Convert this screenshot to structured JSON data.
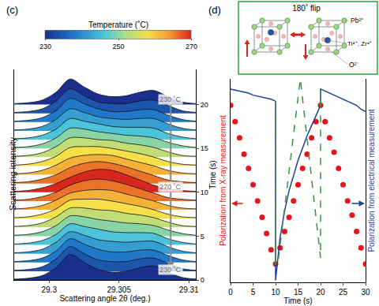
{
  "chart_data": [
    {
      "type": "ridgeline",
      "panel_label": "(c)",
      "xlabel": "Scattering angle 2θ (deg.)",
      "ylabel": "Time (s)",
      "intensity_label": "Scattering intensity",
      "x": [
        29.2975,
        29.2985,
        29.2995,
        29.3005,
        29.3015,
        29.3025,
        29.3035,
        29.3045,
        29.3055,
        29.3065,
        29.3075,
        29.3085,
        29.3095,
        29.3105
      ],
      "xlim": [
        29.2975,
        29.3105
      ],
      "xticks": [
        29.3,
        29.305,
        29.31
      ],
      "ylim": [
        0,
        24
      ],
      "yticks": [
        0,
        5,
        10,
        15,
        20
      ],
      "colorbar": {
        "title": "Temperature (˚C)",
        "range": [
          230,
          270
        ],
        "ticks": [
          230,
          250,
          270
        ]
      },
      "series": [
        {
          "time": 0,
          "temperature": 230,
          "values": [
            0.1,
            0.2,
            0.5,
            1.4,
            2.9,
            2.0,
            1.2,
            0.9,
            1.0,
            1.4,
            1.6,
            0.9,
            0.3,
            0.1
          ]
        },
        {
          "time": 1,
          "temperature": 234,
          "values": [
            0.1,
            0.2,
            0.5,
            1.4,
            2.8,
            2.0,
            1.3,
            1.1,
            1.1,
            1.4,
            1.5,
            0.9,
            0.3,
            0.1
          ]
        },
        {
          "time": 2,
          "temperature": 238,
          "values": [
            0.1,
            0.2,
            0.5,
            1.3,
            2.7,
            2.1,
            1.5,
            1.2,
            1.2,
            1.4,
            1.4,
            0.8,
            0.3,
            0.1
          ]
        },
        {
          "time": 3,
          "temperature": 242,
          "values": [
            0.1,
            0.2,
            0.5,
            1.3,
            2.5,
            2.1,
            1.6,
            1.4,
            1.3,
            1.4,
            1.4,
            0.8,
            0.3,
            0.1
          ]
        },
        {
          "time": 4,
          "temperature": 246,
          "values": [
            0.1,
            0.2,
            0.5,
            1.2,
            2.4,
            2.1,
            1.8,
            1.5,
            1.4,
            1.4,
            1.3,
            0.7,
            0.3,
            0.1
          ]
        },
        {
          "time": 5,
          "temperature": 250,
          "values": [
            0.1,
            0.2,
            0.5,
            1.2,
            2.3,
            2.2,
            1.9,
            1.7,
            1.5,
            1.4,
            1.2,
            0.7,
            0.3,
            0.1
          ]
        },
        {
          "time": 6,
          "temperature": 254,
          "values": [
            0.1,
            0.2,
            0.5,
            1.2,
            2.2,
            2.2,
            2.0,
            1.9,
            1.6,
            1.4,
            1.1,
            0.6,
            0.2,
            0.1
          ]
        },
        {
          "time": 7,
          "temperature": 258,
          "values": [
            0.1,
            0.2,
            0.5,
            1.1,
            2.1,
            2.2,
            2.2,
            2.0,
            1.7,
            1.4,
            1.0,
            0.5,
            0.2,
            0.1
          ]
        },
        {
          "time": 8,
          "temperature": 262,
          "values": [
            0.1,
            0.2,
            0.5,
            1.1,
            1.9,
            2.2,
            2.3,
            2.2,
            1.8,
            1.4,
            1.0,
            0.5,
            0.2,
            0.1
          ]
        },
        {
          "time": 9,
          "temperature": 266,
          "values": [
            0.1,
            0.2,
            0.5,
            1.0,
            1.8,
            2.3,
            2.5,
            2.3,
            1.9,
            1.4,
            0.9,
            0.4,
            0.2,
            0.1
          ]
        },
        {
          "time": 10,
          "temperature": 270,
          "values": [
            0.1,
            0.2,
            0.5,
            1.0,
            1.7,
            2.3,
            2.6,
            2.5,
            2.0,
            1.4,
            0.8,
            0.4,
            0.2,
            0.1
          ]
        },
        {
          "time": 11,
          "temperature": 266,
          "values": [
            0.1,
            0.2,
            0.5,
            1.0,
            1.8,
            2.3,
            2.5,
            2.3,
            1.9,
            1.4,
            0.9,
            0.4,
            0.2,
            0.1
          ]
        },
        {
          "time": 12,
          "temperature": 262,
          "values": [
            0.1,
            0.2,
            0.5,
            1.1,
            1.9,
            2.2,
            2.3,
            2.2,
            1.8,
            1.4,
            1.0,
            0.5,
            0.2,
            0.1
          ]
        },
        {
          "time": 13,
          "temperature": 258,
          "values": [
            0.1,
            0.2,
            0.5,
            1.1,
            2.1,
            2.2,
            2.2,
            2.0,
            1.7,
            1.4,
            1.0,
            0.5,
            0.2,
            0.1
          ]
        },
        {
          "time": 14,
          "temperature": 254,
          "values": [
            0.1,
            0.2,
            0.5,
            1.2,
            2.2,
            2.2,
            2.0,
            1.9,
            1.6,
            1.4,
            1.1,
            0.6,
            0.2,
            0.1
          ]
        },
        {
          "time": 15,
          "temperature": 250,
          "values": [
            0.1,
            0.2,
            0.5,
            1.2,
            2.3,
            2.2,
            1.9,
            1.7,
            1.5,
            1.4,
            1.2,
            0.7,
            0.3,
            0.1
          ]
        },
        {
          "time": 16,
          "temperature": 246,
          "values": [
            0.1,
            0.2,
            0.5,
            1.2,
            2.4,
            2.1,
            1.8,
            1.5,
            1.4,
            1.4,
            1.3,
            0.7,
            0.3,
            0.1
          ]
        },
        {
          "time": 17,
          "temperature": 242,
          "values": [
            0.1,
            0.2,
            0.5,
            1.3,
            2.5,
            2.1,
            1.6,
            1.4,
            1.3,
            1.4,
            1.4,
            0.8,
            0.3,
            0.1
          ]
        },
        {
          "time": 18,
          "temperature": 238,
          "values": [
            0.1,
            0.2,
            0.5,
            1.3,
            2.7,
            2.1,
            1.5,
            1.2,
            1.2,
            1.4,
            1.4,
            0.8,
            0.3,
            0.1
          ]
        },
        {
          "time": 19,
          "temperature": 234,
          "values": [
            0.1,
            0.2,
            0.5,
            1.4,
            2.8,
            2.0,
            1.3,
            1.1,
            1.1,
            1.4,
            1.5,
            0.9,
            0.3,
            0.1
          ]
        },
        {
          "time": 20,
          "temperature": 230,
          "values": [
            0.1,
            0.2,
            0.5,
            1.4,
            2.9,
            2.0,
            1.2,
            0.9,
            1.0,
            1.4,
            1.6,
            0.9,
            0.3,
            0.1
          ]
        }
      ],
      "annotations": [
        {
          "text": "230 ˚C",
          "x": 29.3087,
          "y": 20.6
        },
        {
          "text": "270 ˚C",
          "x": 29.3087,
          "y": 10.6
        },
        {
          "text": "230 ˚C",
          "x": 29.3087,
          "y": 1.2
        }
      ]
    },
    {
      "type": "scatter",
      "panel_label": "(d)",
      "xlabel": "Time (s)",
      "ylabel": "Polarization from X-ray measurement",
      "y2label": "Polarization from electrical measurement",
      "xlim": [
        0,
        30
      ],
      "xticks": [
        0,
        5,
        10,
        15,
        20,
        25,
        30
      ],
      "ylim": [
        0,
        100
      ],
      "y2lim": [
        0,
        100
      ],
      "tick_labels": "x",
      "series": [
        {
          "type": "scatter",
          "marker": "circle",
          "color": "#e8141c",
          "x": [
            0,
            1,
            2,
            3,
            4,
            5,
            6,
            7,
            8,
            9,
            10,
            11,
            12,
            13,
            14,
            15,
            16,
            17,
            18,
            19,
            20,
            21,
            22,
            23,
            24,
            25,
            26,
            27,
            28,
            29,
            30
          ],
          "values": [
            87,
            79,
            71,
            63,
            56,
            48,
            40,
            32,
            24,
            16,
            9,
            17,
            25,
            32,
            40,
            48,
            56,
            63,
            71,
            79,
            87,
            79,
            71,
            64,
            56,
            48,
            40,
            33,
            25,
            17,
            9
          ]
        },
        {
          "type": "line",
          "line_style": "solid",
          "color": "#1f3f9f",
          "axis": "y2",
          "x": [
            0,
            1,
            2,
            3,
            4,
            5,
            6,
            7,
            8,
            9,
            10,
            10,
            11,
            12,
            13,
            14,
            15,
            16,
            17,
            18,
            19,
            20,
            20,
            21,
            22,
            23,
            24,
            25,
            26,
            27,
            28,
            29,
            30
          ],
          "values": [
            95,
            94.5,
            94,
            93.5,
            93,
            92,
            91.5,
            91,
            90.5,
            90,
            89,
            1,
            22,
            35,
            45,
            53,
            60,
            66,
            72,
            77,
            82,
            87,
            95,
            94,
            93,
            92,
            91,
            90,
            89,
            88,
            87,
            85,
            84
          ]
        },
        {
          "type": "line",
          "line_style": "dashed",
          "color": "#2e9a3a",
          "axis": "y2",
          "x": [
            10,
            10,
            10.5,
            15.5,
            20,
            20
          ],
          "values": [
            89,
            9,
            9,
            100,
            12,
            95
          ]
        }
      ],
      "inset": {
        "title": "180˚ flip",
        "labels": [
          "Pb²⁺",
          "Ti⁴⁺, Zr⁴⁺",
          "O²⁻"
        ]
      }
    }
  ]
}
